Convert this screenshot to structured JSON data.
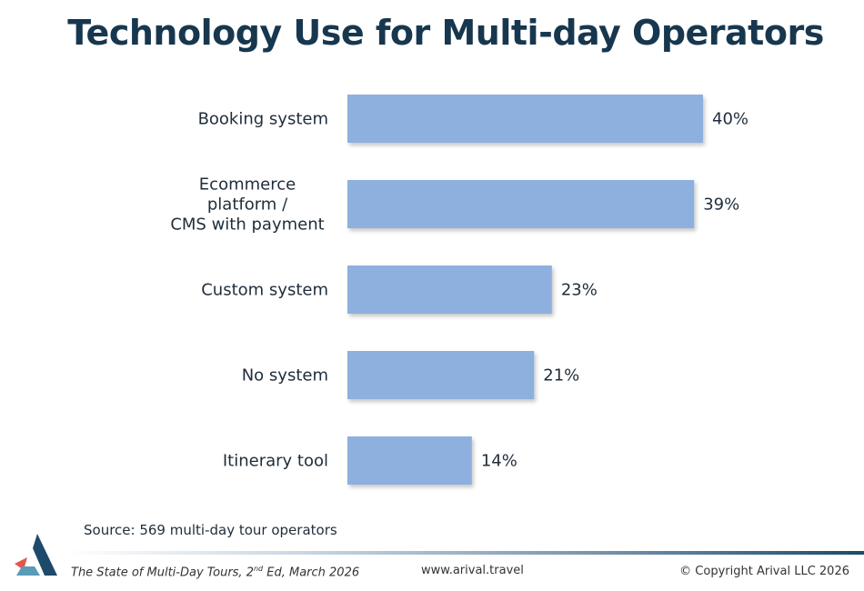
{
  "title": "Technology Use for Multi-day Operators",
  "source": "Source: 569 multi-day tour operators",
  "footer": {
    "publication_prefix": "The State of Multi-Day Tours, 2",
    "publication_sup": "nd",
    "publication_suffix": " Ed,  March 2026",
    "website": "www.arival.travel",
    "copyright": "© Copyright Arival LLC 2026"
  },
  "colors": {
    "bar": "#8db0de",
    "title": "#17374f",
    "logo_dark": "#1d4a6b",
    "logo_red": "#e2574c",
    "logo_teal": "#5a9bb8"
  },
  "chart_data": {
    "type": "bar",
    "orientation": "horizontal",
    "categories": [
      [
        "Booking system"
      ],
      [
        "Ecommerce",
        "platform /",
        "CMS with payment"
      ],
      [
        "Custom system"
      ],
      [
        "No system"
      ],
      [
        "Itinerary tool"
      ]
    ],
    "values": [
      40,
      39,
      23,
      21,
      14
    ],
    "value_labels": [
      "40%",
      "39%",
      "23%",
      "21%",
      "14%"
    ],
    "unit": "%",
    "xlim": [
      0,
      40
    ],
    "grid": false,
    "legend": "none"
  }
}
